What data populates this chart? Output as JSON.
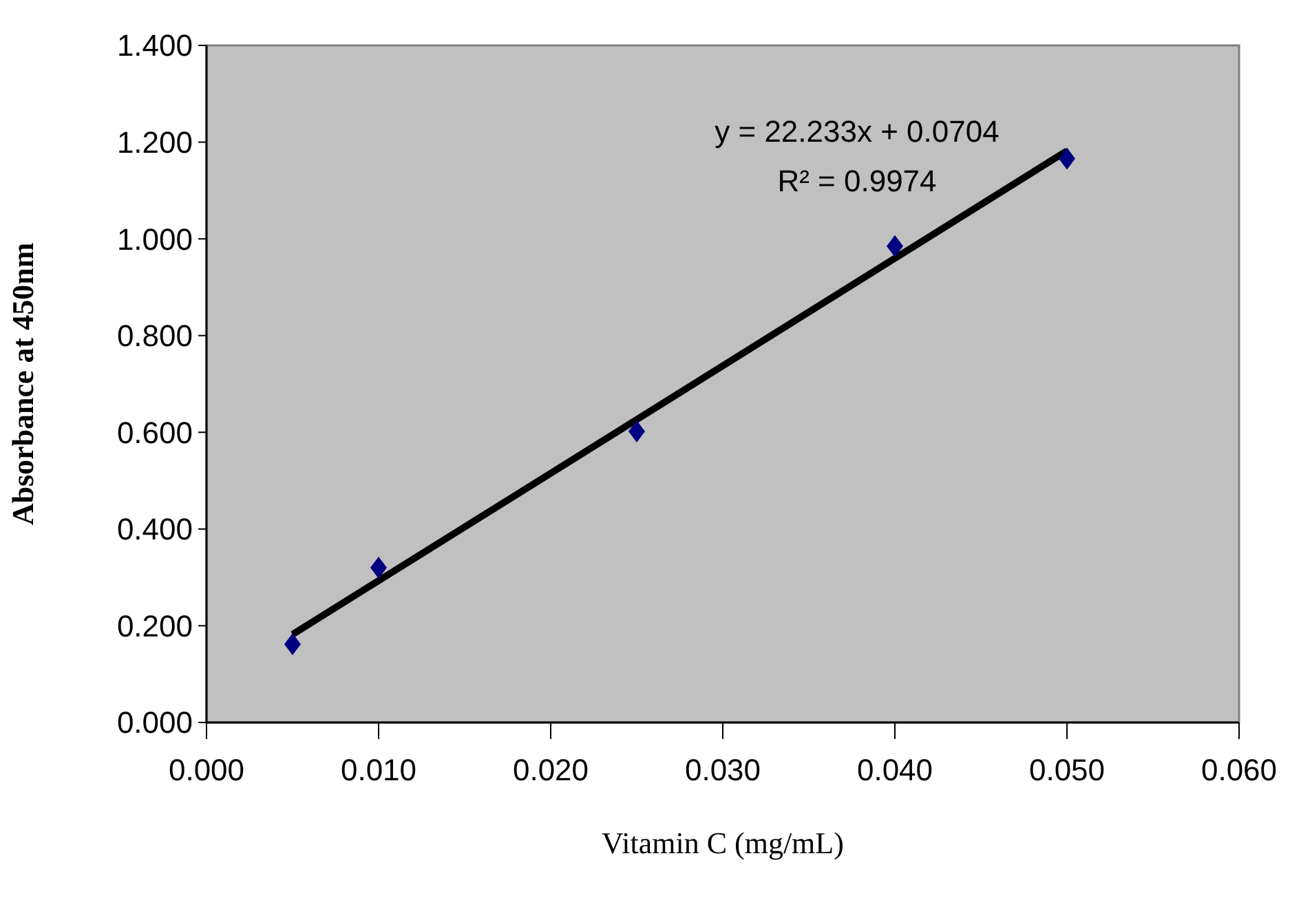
{
  "chart_data": {
    "type": "scatter",
    "xlabel": "Vitamin  C (mg/mL)",
    "ylabel": "Absorbance at 450nm",
    "xlim": [
      0,
      0.06
    ],
    "xticks": [
      {
        "value": 0,
        "label": "0.000"
      },
      {
        "value": 0.01,
        "label": "0.010"
      },
      {
        "value": 0.02,
        "label": "0.020"
      },
      {
        "value": 0.03,
        "label": "0.030"
      },
      {
        "value": 0.04,
        "label": "0.040"
      },
      {
        "value": 0.05,
        "label": "0.050"
      },
      {
        "value": 0.06,
        "label": "0.060"
      }
    ],
    "ylim": [
      0,
      1.4
    ],
    "yticks": [
      {
        "value": 0,
        "label": "0.000"
      },
      {
        "value": 0.2,
        "label": "0.200"
      },
      {
        "value": 0.4,
        "label": "0.400"
      },
      {
        "value": 0.6,
        "label": "0.600"
      },
      {
        "value": 0.8,
        "label": "0.800"
      },
      {
        "value": 1,
        "label": "1.000"
      },
      {
        "value": 1.2,
        "label": "1.200"
      },
      {
        "value": 1.4,
        "label": "1.400"
      }
    ],
    "grid": false,
    "series": [
      {
        "marker": "diamond",
        "color": "#000080",
        "x": [
          0.005,
          0.01,
          0.025,
          0.04,
          0.05
        ],
        "values": [
          0.162,
          0.32,
          0.602,
          0.985,
          1.166
        ]
      },
      {
        "type": "line",
        "marker": "none",
        "color": "#000000",
        "x": [
          0.005,
          0.05
        ],
        "values": [
          0.182,
          1.182
        ]
      }
    ],
    "annotations": [
      "y = 22.233x + 0.0704",
      "R² = 0.9974"
    ]
  }
}
